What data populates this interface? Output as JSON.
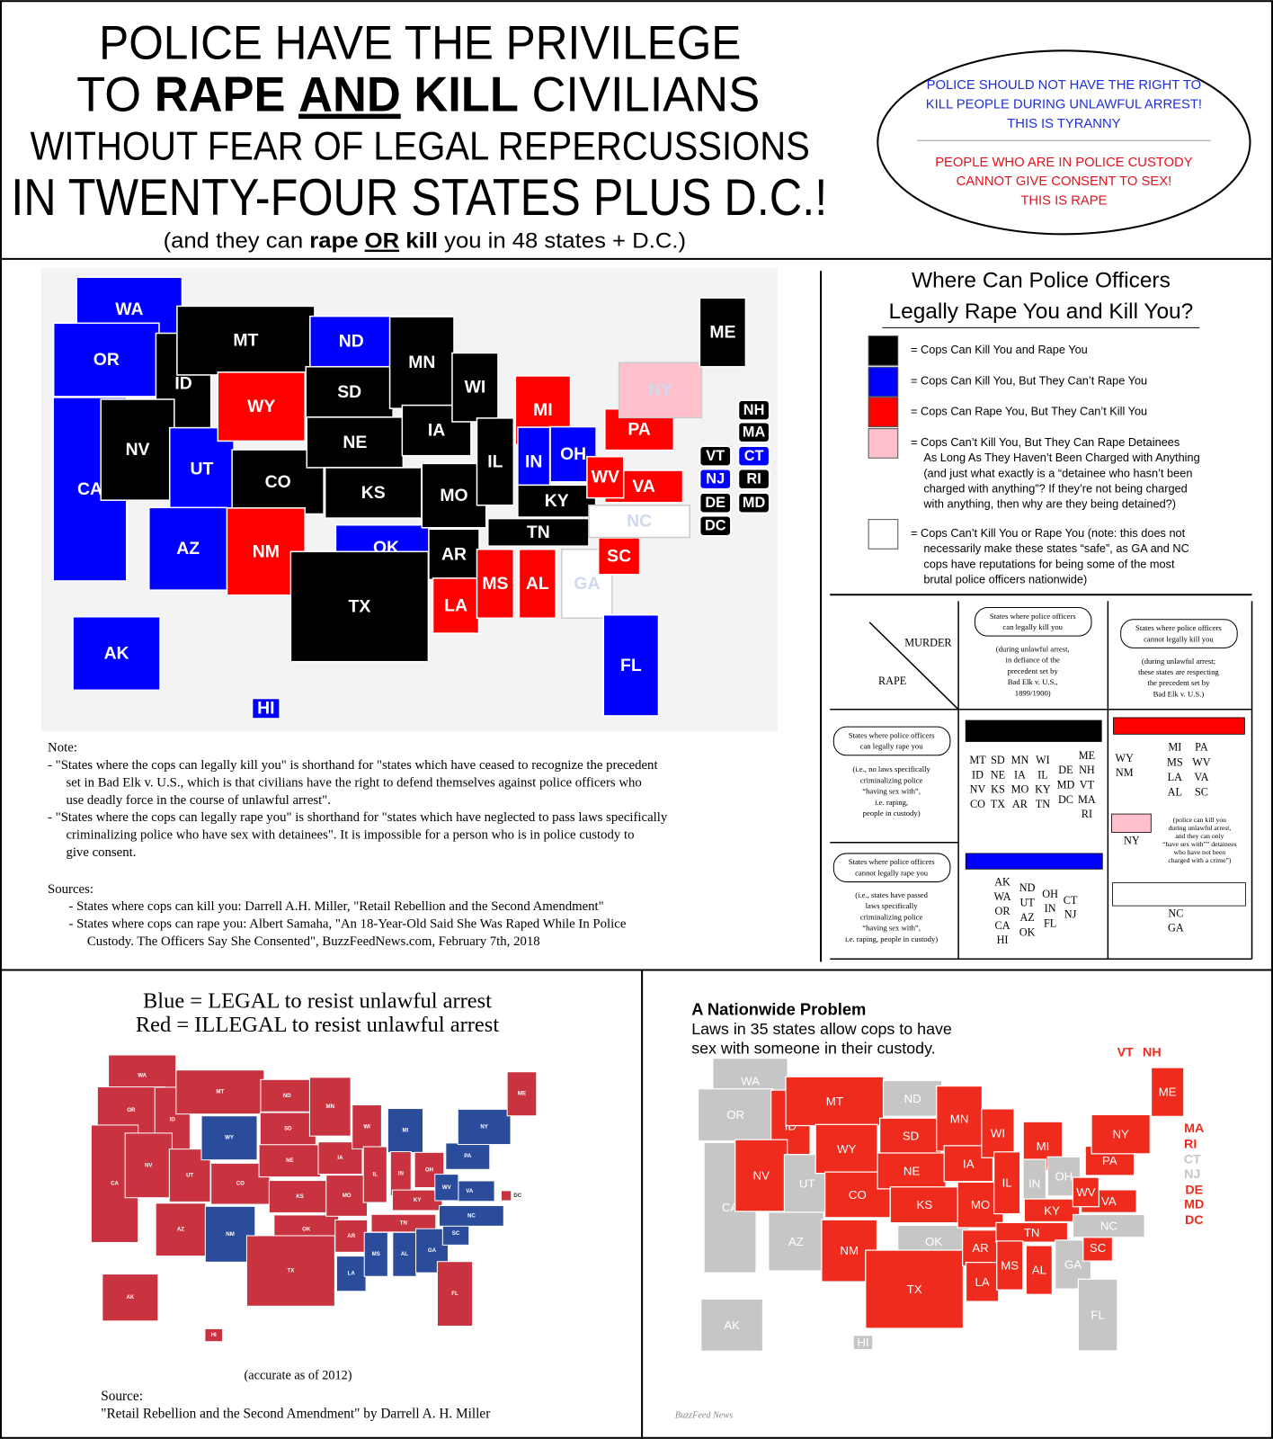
{
  "header": {
    "line1": "POLICE HAVE THE PRIVILEGE",
    "line2": [
      "TO",
      "RAPE",
      "AND",
      "KILL",
      "CIVILIANS"
    ],
    "line3": "WITHOUT FEAR OF LEGAL REPERCUSSIONS",
    "line4": "IN TWENTY-FOUR STATES PLUS D.C.!",
    "subtitle": [
      "(and they can",
      "rape",
      "OR",
      "kill",
      "you in 48 states + D.C.)"
    ]
  },
  "callout": {
    "blue_lines": [
      "POLICE SHOULD NOT HAVE THE RIGHT TO",
      "KILL PEOPLE DURING UNLAWFUL ARREST!",
      "THIS IS TYRANNY"
    ],
    "red_lines": [
      "PEOPLE WHO ARE IN POLICE CUSTODY",
      "CANNOT GIVE CONSENT TO SEX!",
      "THIS IS RAPE"
    ]
  },
  "map1": {
    "states": [
      {
        "label": "WA",
        "color": "#0000ff"
      },
      {
        "label": "OR",
        "color": "#0000ff"
      },
      {
        "label": "CA",
        "color": "#0000ff"
      },
      {
        "label": "ID",
        "color": "#000000"
      },
      {
        "label": "NV",
        "color": "#000000"
      },
      {
        "label": "UT",
        "color": "#0000ff"
      },
      {
        "label": "AZ",
        "color": "#0000ff"
      },
      {
        "label": "MT",
        "color": "#000000"
      },
      {
        "label": "WY",
        "color": "#ff0000"
      },
      {
        "label": "CO",
        "color": "#000000"
      },
      {
        "label": "NM",
        "color": "#ff0000"
      },
      {
        "label": "ND",
        "color": "#0000ff"
      },
      {
        "label": "SD",
        "color": "#000000"
      },
      {
        "label": "NE",
        "color": "#000000"
      },
      {
        "label": "KS",
        "color": "#000000"
      },
      {
        "label": "OK",
        "color": "#0000ff"
      },
      {
        "label": "TX",
        "color": "#000000"
      },
      {
        "label": "MN",
        "color": "#000000"
      },
      {
        "label": "IA",
        "color": "#000000"
      },
      {
        "label": "MO",
        "color": "#000000"
      },
      {
        "label": "AR",
        "color": "#000000"
      },
      {
        "label": "LA",
        "color": "#ff0000"
      },
      {
        "label": "WI",
        "color": "#000000"
      },
      {
        "label": "IL",
        "color": "#000000"
      },
      {
        "label": "MI",
        "color": "#ff0000"
      },
      {
        "label": "IN",
        "color": "#0000ff"
      },
      {
        "label": "OH",
        "color": "#0000ff"
      },
      {
        "label": "KY",
        "color": "#000000"
      },
      {
        "label": "TN",
        "color": "#000000"
      },
      {
        "label": "MS",
        "color": "#ff0000"
      },
      {
        "label": "AL",
        "color": "#ff0000"
      },
      {
        "label": "GA",
        "color": "#ffffff"
      },
      {
        "label": "FL",
        "color": "#0000ff"
      },
      {
        "label": "SC",
        "color": "#ff0000"
      },
      {
        "label": "NC",
        "color": "#ffffff"
      },
      {
        "label": "VA",
        "color": "#ff0000"
      },
      {
        "label": "WV",
        "color": "#ff0000"
      },
      {
        "label": "PA",
        "color": "#ff0000"
      },
      {
        "label": "NY",
        "color": "#ffc0cb"
      },
      {
        "label": "ME",
        "color": "#000000"
      },
      {
        "label": "AK",
        "color": "#0000ff"
      },
      {
        "label": "HI",
        "color": "#0000ff"
      },
      {
        "label": "NH",
        "color": "#000000"
      },
      {
        "label": "MA",
        "color": "#000000"
      },
      {
        "label": "CT",
        "color": "#0000ff"
      },
      {
        "label": "RI",
        "color": "#000000"
      },
      {
        "label": "MD",
        "color": "#000000"
      },
      {
        "label": "VT",
        "color": "#000000"
      },
      {
        "label": "NJ",
        "color": "#0000ff"
      },
      {
        "label": "DE",
        "color": "#000000"
      },
      {
        "label": "DC",
        "color": "#000000"
      }
    ]
  },
  "legend": {
    "title": [
      "Where Can Police Officers",
      "Legally Rape You and Kill You?"
    ],
    "items": [
      {
        "color": "#000000",
        "lines": [
          "= Cops Can Kill You and Rape You"
        ]
      },
      {
        "color": "#0000ff",
        "lines": [
          "= Cops Can Kill You, But They Can’t Rape You"
        ]
      },
      {
        "color": "#ff0000",
        "lines": [
          "= Cops Can Rape You, But They Can’t Kill You"
        ]
      },
      {
        "color": "#ffc0cb",
        "lines": [
          "= Cops Can’t Kill You, But They Can Rape Detainees",
          "As Long As They Haven’t Been Charged with Anything",
          "(and just what exactly is a “detainee who hasn’t been",
          "charged with anything”? If they’re not being charged",
          "with anything, then why are they being detained?)"
        ]
      },
      {
        "color": "#ffffff",
        "lines": [
          "= Cops Can’t Kill You or Rape You (note: this does not",
          "necessarily make these states “safe”, as GA and NC",
          "cops have reputations for being some of the most",
          "brutal police officers nationwide)"
        ]
      }
    ]
  },
  "table": {
    "corner": [
      "MURDER",
      "RAPE"
    ],
    "columns": [
      {
        "bubble": [
          "States where police officers",
          "can legally kill you"
        ],
        "note": [
          "(during unlawful arrest,",
          "in defiance of the",
          "precedent set by",
          "Bad Elk v. U.S.,",
          "1899/1900)"
        ]
      },
      {
        "bubble": [
          "States where police officers",
          "cannot legally kill you"
        ],
        "note": [
          "(during unlawful arrest;",
          "these states are respecting",
          "the precedent set by",
          "Bad Elk v. U.S.)"
        ]
      }
    ],
    "rows": [
      {
        "bubble": [
          "States where police officers",
          "can legally rape you"
        ],
        "note": [
          "(i.e., no laws specifically",
          "criminalizing police",
          "“having sex with”,",
          "i.e. raping,",
          "people in custody)"
        ]
      },
      {
        "bubble": [
          "States where police officers",
          "cannot legally rape you"
        ],
        "note": [
          "(i.e., states have passed",
          "laws specifically",
          "criminalizing police",
          "“having sex with”,",
          "i.e. raping, people in custody)"
        ]
      }
    ],
    "cells": [
      [
        {
          "color": "#000000",
          "groups": [
            [
              "MT",
              "ID",
              "NV",
              "CO"
            ],
            [
              "SD",
              "NE",
              "KS",
              "TX"
            ],
            [
              "MN",
              "IA",
              "MO",
              "AR"
            ],
            [
              "WI",
              "IL",
              "KY",
              "TN"
            ],
            [
              "DE",
              "MD",
              "DC"
            ],
            [
              "ME",
              "NH",
              "VT",
              "MA",
              "RI"
            ]
          ]
        },
        {
          "color": "#ff0000",
          "groups": [
            [
              "WY",
              "NM"
            ],
            [
              "MI",
              "MS",
              "LA",
              "AL"
            ],
            [
              "PA",
              "WV",
              "VA",
              "SC"
            ]
          ],
          "extra": {
            "color": "#ffc0cb",
            "states": [
              "NY"
            ],
            "note": [
              "(police can kill you",
              "during unlawful arrest,",
              "and they can only",
              "“have sex with”” detainees",
              "who have not been",
              "charged with a crime”)"
            ]
          }
        }
      ],
      [
        {
          "color": "#0000ff",
          "groups": [
            [
              "AK",
              "WA",
              "OR",
              "CA",
              "HI"
            ],
            [
              "ND",
              "UT",
              "AZ",
              "OK"
            ],
            [
              "OH",
              "IN",
              "FL"
            ],
            [
              "CT",
              "NJ"
            ]
          ]
        },
        {
          "color": "#ffffff",
          "groups": [
            [
              "NC",
              "GA"
            ]
          ]
        }
      ]
    ]
  },
  "notes": {
    "lines": [
      "Note:",
      "- \"States where the cops can legally kill you\" is shorthand for \"states which have ceased to recognize the precedent",
      "set in Bad Elk v. U.S., which is that civilians have the right to defend themselves against police officers who",
      "use deadly force in the course of unlawful arrest\".",
      "- \"States where the cops can legally rape you\" is shorthand for \"states which have neglected to pass laws specifically",
      "criminalizing police who have sex with detainees\". It is impossible for a person who is in police custody to",
      "give consent."
    ]
  },
  "sources": {
    "lines": [
      "Sources:",
      "- States where cops can kill you: Darrell A.H. Miller, \"Retail Rebellion and the Second Amendment\"",
      "- States where cops can rape you: Albert Samaha, \"An 18-Year-Old Said She Was Raped While In Police",
      "Custody. The Officers Say She Consented\", BuzzFeedNews.com, February 7th, 2018"
    ]
  },
  "map2": {
    "title": [
      "Blue = LEGAL to resist unlawful arrest",
      "Red = ILLEGAL to resist unlawful arrest"
    ],
    "states": [
      {
        "label": "WA",
        "color": "#c9323f"
      },
      {
        "label": "OR",
        "color": "#c9323f"
      },
      {
        "label": "CA",
        "color": "#c9323f"
      },
      {
        "label": "ID",
        "color": "#c9323f"
      },
      {
        "label": "NV",
        "color": "#c9323f"
      },
      {
        "label": "UT",
        "color": "#c9323f"
      },
      {
        "label": "AZ",
        "color": "#c9323f"
      },
      {
        "label": "MT",
        "color": "#c9323f"
      },
      {
        "label": "WY",
        "color": "#2b4c9b"
      },
      {
        "label": "CO",
        "color": "#c9323f"
      },
      {
        "label": "NM",
        "color": "#2b4c9b"
      },
      {
        "label": "ND",
        "color": "#c9323f"
      },
      {
        "label": "SD",
        "color": "#c9323f"
      },
      {
        "label": "NE",
        "color": "#c9323f"
      },
      {
        "label": "KS",
        "color": "#c9323f"
      },
      {
        "label": "OK",
        "color": "#c9323f"
      },
      {
        "label": "TX",
        "color": "#c9323f"
      },
      {
        "label": "MN",
        "color": "#c9323f"
      },
      {
        "label": "IA",
        "color": "#c9323f"
      },
      {
        "label": "MO",
        "color": "#c9323f"
      },
      {
        "label": "AR",
        "color": "#c9323f"
      },
      {
        "label": "LA",
        "color": "#2b4c9b"
      },
      {
        "label": "WI",
        "color": "#c9323f"
      },
      {
        "label": "IL",
        "color": "#c9323f"
      },
      {
        "label": "MI",
        "color": "#2b4c9b"
      },
      {
        "label": "IN",
        "color": "#c9323f"
      },
      {
        "label": "OH",
        "color": "#c9323f"
      },
      {
        "label": "KY",
        "color": "#c9323f"
      },
      {
        "label": "TN",
        "color": "#c9323f"
      },
      {
        "label": "MS",
        "color": "#2b4c9b"
      },
      {
        "label": "AL",
        "color": "#2b4c9b"
      },
      {
        "label": "GA",
        "color": "#2b4c9b"
      },
      {
        "label": "FL",
        "color": "#c9323f"
      },
      {
        "label": "SC",
        "color": "#2b4c9b"
      },
      {
        "label": "NC",
        "color": "#2b4c9b"
      },
      {
        "label": "VA",
        "color": "#2b4c9b"
      },
      {
        "label": "WV",
        "color": "#2b4c9b"
      },
      {
        "label": "PA",
        "color": "#2b4c9b"
      },
      {
        "label": "NY",
        "color": "#2b4c9b"
      },
      {
        "label": "ME",
        "color": "#c9323f"
      },
      {
        "label": "AK",
        "color": "#c9323f"
      },
      {
        "label": "HI",
        "color": "#c9323f"
      },
      {
        "label": "DC",
        "color": "#c9323f"
      }
    ],
    "footnote": "(accurate as of 2012)",
    "source": [
      "Source:",
      "\"Retail Rebellion and the Second Amendment\" by Darrell A. H. Miller"
    ]
  },
  "map3": {
    "title": "A Nationwide Problem",
    "subtitle": [
      "Laws in 35 states allow cops to have",
      "sex with someone in their custody."
    ],
    "states": [
      {
        "label": "WA",
        "color": "#c6c6c6"
      },
      {
        "label": "OR",
        "color": "#c6c6c6"
      },
      {
        "label": "CA",
        "color": "#c6c6c6"
      },
      {
        "label": "ID",
        "color": "#ee2b1c"
      },
      {
        "label": "NV",
        "color": "#ee2b1c"
      },
      {
        "label": "UT",
        "color": "#c6c6c6"
      },
      {
        "label": "AZ",
        "color": "#c6c6c6"
      },
      {
        "label": "MT",
        "color": "#ee2b1c"
      },
      {
        "label": "WY",
        "color": "#ee2b1c"
      },
      {
        "label": "CO",
        "color": "#ee2b1c"
      },
      {
        "label": "NM",
        "color": "#ee2b1c"
      },
      {
        "label": "ND",
        "color": "#c6c6c6"
      },
      {
        "label": "SD",
        "color": "#ee2b1c"
      },
      {
        "label": "NE",
        "color": "#ee2b1c"
      },
      {
        "label": "KS",
        "color": "#ee2b1c"
      },
      {
        "label": "OK",
        "color": "#c6c6c6"
      },
      {
        "label": "TX",
        "color": "#ee2b1c"
      },
      {
        "label": "MN",
        "color": "#ee2b1c"
      },
      {
        "label": "IA",
        "color": "#ee2b1c"
      },
      {
        "label": "MO",
        "color": "#ee2b1c"
      },
      {
        "label": "AR",
        "color": "#ee2b1c"
      },
      {
        "label": "LA",
        "color": "#ee2b1c"
      },
      {
        "label": "WI",
        "color": "#ee2b1c"
      },
      {
        "label": "IL",
        "color": "#ee2b1c"
      },
      {
        "label": "MI",
        "color": "#ee2b1c"
      },
      {
        "label": "IN",
        "color": "#c6c6c6"
      },
      {
        "label": "OH",
        "color": "#c6c6c6"
      },
      {
        "label": "KY",
        "color": "#ee2b1c"
      },
      {
        "label": "TN",
        "color": "#ee2b1c"
      },
      {
        "label": "MS",
        "color": "#ee2b1c"
      },
      {
        "label": "AL",
        "color": "#ee2b1c"
      },
      {
        "label": "GA",
        "color": "#c6c6c6"
      },
      {
        "label": "FL",
        "color": "#c6c6c6"
      },
      {
        "label": "SC",
        "color": "#ee2b1c"
      },
      {
        "label": "NC",
        "color": "#c6c6c6"
      },
      {
        "label": "VA",
        "color": "#ee2b1c"
      },
      {
        "label": "WV",
        "color": "#ee2b1c"
      },
      {
        "label": "PA",
        "color": "#ee2b1c"
      },
      {
        "label": "NY",
        "color": "#ee2b1c"
      },
      {
        "label": "ME",
        "color": "#ee2b1c"
      },
      {
        "label": "AK",
        "color": "#c6c6c6"
      },
      {
        "label": "HI",
        "color": "#c6c6c6"
      },
      {
        "label": "NH",
        "color": "#ee2b1c"
      },
      {
        "label": "MA",
        "color": "#ee2b1c"
      },
      {
        "label": "CT",
        "color": "#c6c6c6"
      },
      {
        "label": "RI",
        "color": "#ee2b1c"
      },
      {
        "label": "MD",
        "color": "#ee2b1c"
      },
      {
        "label": "VT",
        "color": "#ee2b1c"
      },
      {
        "label": "NJ",
        "color": "#c6c6c6"
      },
      {
        "label": "DE",
        "color": "#ee2b1c"
      },
      {
        "label": "DC",
        "color": "#ee2b1c"
      }
    ],
    "credit": "BuzzFeed News"
  }
}
